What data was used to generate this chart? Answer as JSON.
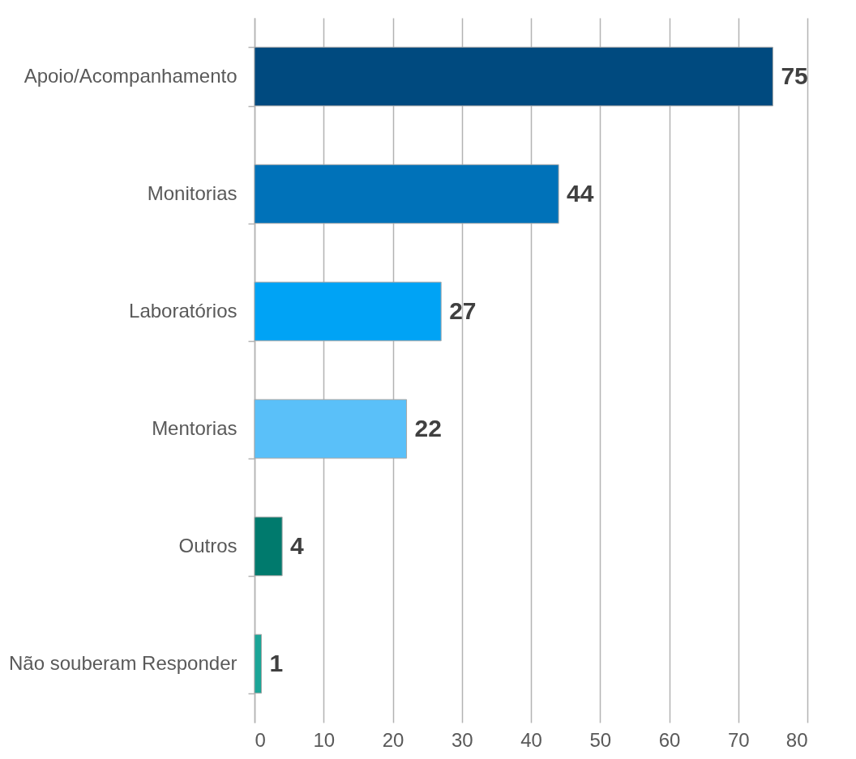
{
  "chart_data": {
    "type": "bar",
    "orientation": "horizontal",
    "categories": [
      "Apoio/Acompanhamento",
      "Monitorias",
      "Laboratórios",
      "Mentorias",
      "Outros",
      "Não souberam Responder"
    ],
    "values": [
      75,
      44,
      27,
      22,
      4,
      1
    ],
    "colors": [
      "#004a7f",
      "#0072b9",
      "#00a3f5",
      "#5ac0f9",
      "#007a6d",
      "#1ba597"
    ],
    "xlim": [
      0,
      80
    ],
    "xticks": [
      0,
      10,
      20,
      30,
      40,
      50,
      60,
      70,
      80
    ],
    "grid": "x",
    "data_labels": true
  }
}
